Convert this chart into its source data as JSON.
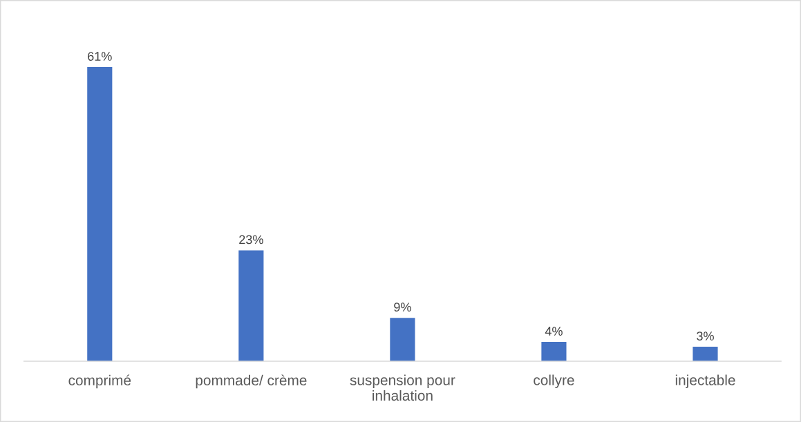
{
  "chart_data": {
    "type": "bar",
    "categories": [
      "comprimé",
      "pommade/ crème",
      "suspension pour\ninhalation",
      "collyre",
      "injectable"
    ],
    "values": [
      61,
      23,
      9,
      4,
      3
    ],
    "value_labels": [
      "61%",
      "23%",
      "9%",
      "4%",
      "3%"
    ],
    "color": "#4472c4"
  }
}
